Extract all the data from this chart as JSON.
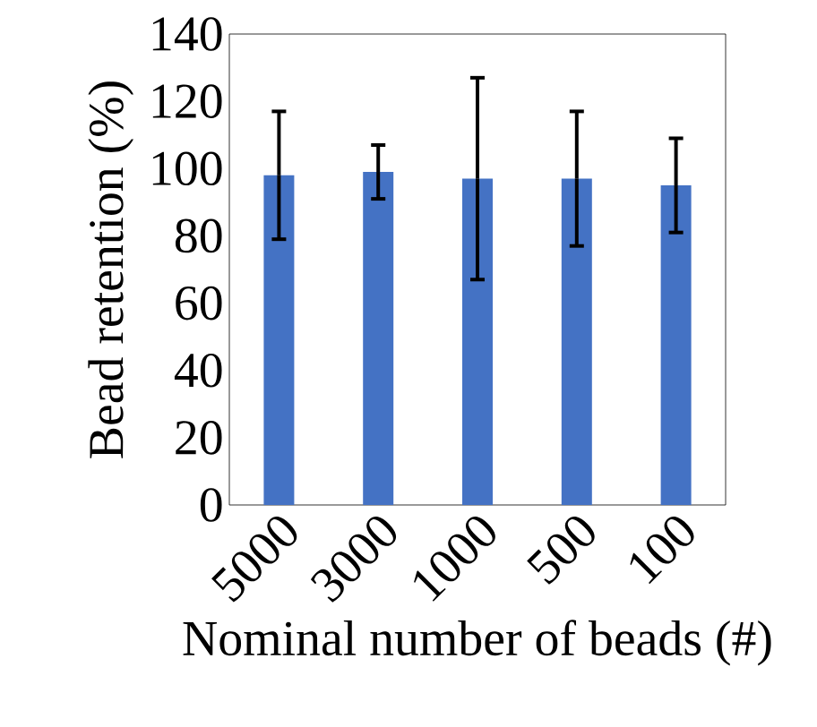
{
  "chart_data": {
    "type": "bar",
    "xlabel": "Nominal number of beads (#)",
    "ylabel": "Bead retention (%)",
    "categories": [
      "5000",
      "3000",
      "1000",
      "500",
      "100"
    ],
    "values": [
      98,
      99,
      97,
      97,
      95
    ],
    "errors": [
      19,
      8,
      30,
      20,
      14
    ],
    "color": "#4472c4",
    "ylim": [
      0,
      140
    ],
    "yticks": [
      0,
      20,
      40,
      60,
      80,
      100,
      120,
      140
    ],
    "grid": false
  }
}
